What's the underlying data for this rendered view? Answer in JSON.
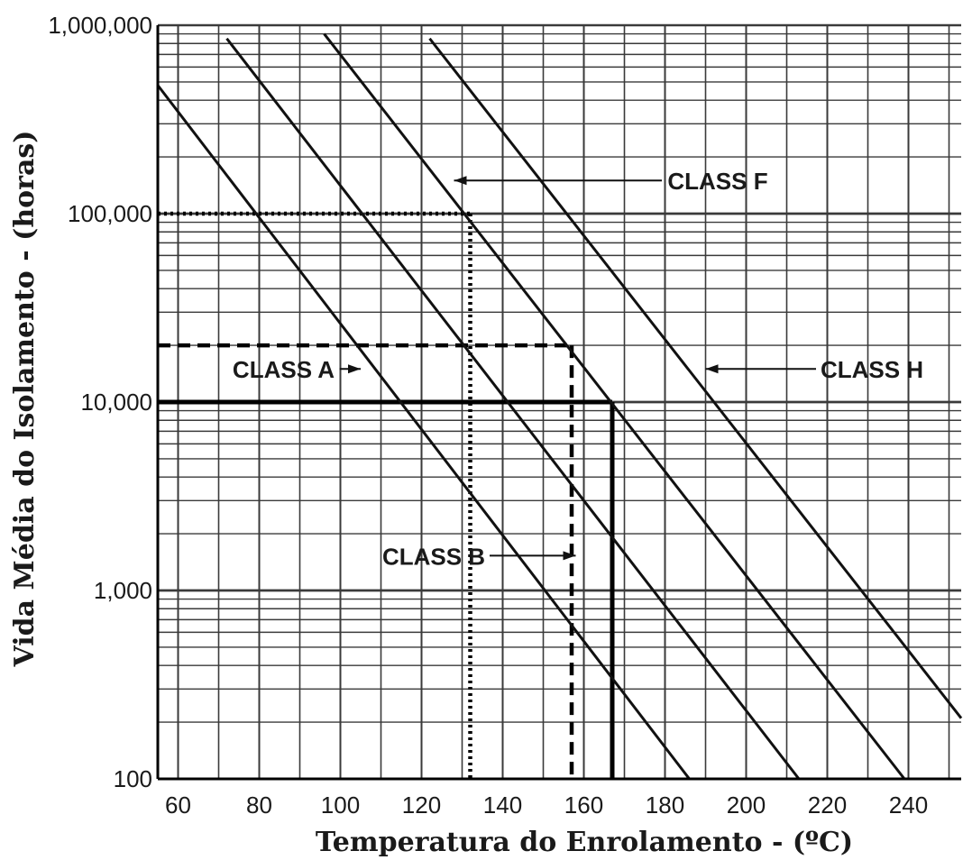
{
  "chart_data": {
    "type": "line",
    "xlabel": "Temperatura do Enrolamento - (ºC)",
    "ylabel": "Vida Média do Isolamento - (horas)",
    "x_scale": "linear",
    "y_scale": "log",
    "xlim": [
      55,
      253
    ],
    "ylim": [
      100,
      1000000
    ],
    "x_ticks": [
      60,
      80,
      100,
      120,
      140,
      160,
      180,
      200,
      220,
      240
    ],
    "x_tick_labels": [
      "60",
      "80",
      "100",
      "120",
      "140",
      "160",
      "180",
      "200",
      "220",
      "240"
    ],
    "y_ticks": [
      100,
      1000,
      10000,
      100000,
      1000000
    ],
    "y_tick_labels": [
      "100",
      "1,000",
      "10,000",
      "100,000",
      "1,000,000"
    ],
    "grid": true,
    "series": [
      {
        "name": "CLASS A",
        "x": [
          55,
          186
        ],
        "y": [
          480000,
          100
        ]
      },
      {
        "name": "CLASS B",
        "x": [
          72,
          213
        ],
        "y": [
          850000,
          100
        ]
      },
      {
        "name": "CLASS F",
        "x": [
          96,
          239
        ],
        "y": [
          900000,
          100
        ]
      },
      {
        "name": "CLASS H",
        "x": [
          122,
          253
        ],
        "y": [
          850000,
          210
        ]
      }
    ],
    "reference_lines": [
      {
        "style": "dotted",
        "x": 132,
        "y": 100000
      },
      {
        "style": "dashed",
        "x": 157,
        "y": 20000
      },
      {
        "style": "solid",
        "x": 167,
        "y": 10000
      }
    ],
    "annotations": [
      {
        "text": "CLASS F",
        "x": 193,
        "y": 150000,
        "arrow_to": [
          128,
          150000
        ]
      },
      {
        "text": "CLASS A",
        "x": 86,
        "y": 15000,
        "arrow_to": [
          105,
          15000
        ]
      },
      {
        "text": "CLASS H",
        "x": 231,
        "y": 15000,
        "arrow_to": [
          190,
          15000
        ]
      },
      {
        "text": "CLASS B",
        "x": 123,
        "y": 1530,
        "arrow_to": [
          158,
          1530
        ]
      }
    ]
  }
}
